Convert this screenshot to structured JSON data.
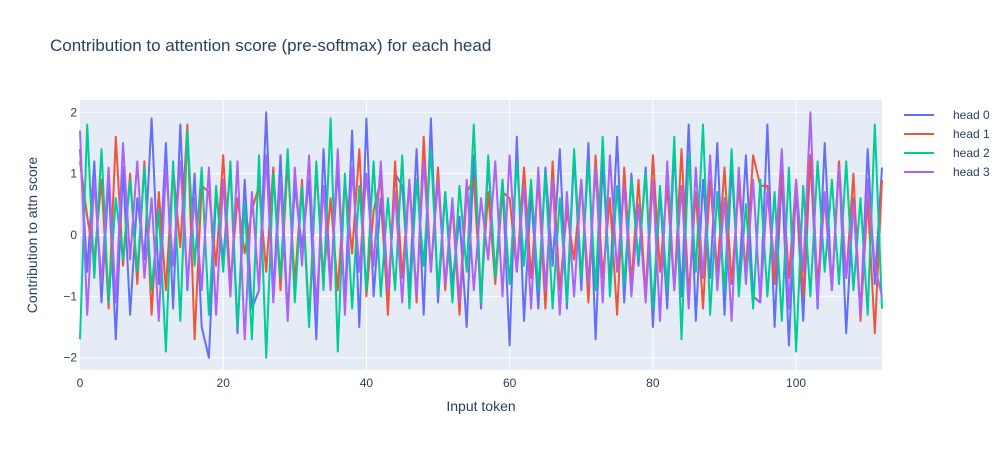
{
  "chart_data": {
    "type": "line",
    "title": "Contribution to attention score (pre-softmax) for each head",
    "xlabel": "Input token",
    "ylabel": "Contribution to attn score",
    "xlim": [
      0,
      112
    ],
    "ylim": [
      -2.2,
      2.2
    ],
    "x_ticks": [
      0,
      20,
      40,
      60,
      80,
      100
    ],
    "y_ticks": [
      -2,
      -1,
      0,
      1,
      2
    ],
    "x_tick_labels": [
      "0",
      "20",
      "40",
      "60",
      "80",
      "100"
    ],
    "y_tick_labels": [
      "−2",
      "−1",
      "0",
      "1",
      "2"
    ],
    "grid": true,
    "legend_position": "top-right",
    "x": [
      0,
      1,
      2,
      3,
      4,
      5,
      6,
      7,
      8,
      9,
      10,
      11,
      12,
      13,
      14,
      15,
      16,
      17,
      18,
      19,
      20,
      21,
      22,
      23,
      24,
      25,
      26,
      27,
      28,
      29,
      30,
      31,
      32,
      33,
      34,
      35,
      36,
      37,
      38,
      39,
      40,
      41,
      42,
      43,
      44,
      45,
      46,
      47,
      48,
      49,
      50,
      51,
      52,
      53,
      54,
      55,
      56,
      57,
      58,
      59,
      60,
      61,
      62,
      63,
      64,
      65,
      66,
      67,
      68,
      69,
      70,
      71,
      72,
      73,
      74,
      75,
      76,
      77,
      78,
      79,
      80,
      81,
      82,
      83,
      84,
      85,
      86,
      87,
      88,
      89,
      90,
      91,
      92,
      93,
      94,
      95,
      96,
      97,
      98,
      99,
      100,
      101,
      102,
      103,
      104,
      105,
      106,
      107,
      108,
      109,
      110,
      111,
      112
    ],
    "series": [
      {
        "name": "head 0",
        "color": "#636efa",
        "values": [
          1.4,
          -0.6,
          1.2,
          -1.1,
          0.9,
          -1.7,
          1.1,
          -1.3,
          0.6,
          -0.4,
          1.9,
          -0.8,
          1.5,
          -1.2,
          1.8,
          -0.9,
          1.0,
          -1.5,
          -2.0,
          0.7,
          -0.4,
          1.1,
          -1.6,
          0.9,
          -1.2,
          -0.9,
          2.0,
          -1.0,
          1.3,
          -1.3,
          0.8,
          -0.2,
          0.9,
          -1.7,
          1.4,
          -0.8,
          1.1,
          -1.1,
          1.7,
          -1.5,
          1.9,
          -1.0,
          0.6,
          -1.2,
          1.0,
          0.8,
          -0.9,
          1.4,
          -1.3,
          1.9,
          -1.1,
          0.7,
          -0.8,
          0.3,
          -1.5,
          1.3,
          -1.2,
          1.2,
          -0.7,
          0.9,
          -1.8,
          1.6,
          -1.4,
          0.7,
          -1.2,
          1.1,
          -0.5,
          1.4,
          -1.2,
          1.3,
          -0.9,
          1.5,
          -1.7,
          1.2,
          -0.8,
          1.6,
          -1.1,
          1.0,
          -0.5,
          1.1,
          -1.5,
          0.7,
          -1.2,
          1.4,
          -1.0,
          1.8,
          -1.4,
          0.9,
          -0.7,
          1.5,
          -1.3,
          1.1,
          -0.8,
          1.3,
          -1.0,
          -1.1,
          1.8,
          -1.5,
          1.0,
          -1.8,
          0.8,
          -1.4,
          1.3,
          -1.2,
          1.5,
          -0.9,
          1.2,
          -1.6,
          0.6,
          -1.3,
          1.4,
          -0.8,
          1.1
        ]
      },
      {
        "name": "head 1",
        "color": "#ef553b",
        "values": [
          1.2,
          0.3,
          -0.4,
          0.9,
          -1.2,
          1.6,
          -0.5,
          1.0,
          -0.8,
          1.2,
          -1.3,
          0.7,
          -0.9,
          1.1,
          -0.2,
          1.8,
          -1.7,
          0.8,
          0.7,
          -0.5,
          1.3,
          -0.8,
          0.6,
          -0.3,
          0.4,
          0.8,
          -0.6,
          1.1,
          -0.9,
          1.2,
          -0.8,
          0.9,
          -1.4,
          1.1,
          -0.7,
          0.6,
          -0.9,
          0.9,
          -0.3,
          1.4,
          -1.0,
          0.4,
          0.9,
          -1.3,
          1.2,
          -0.7,
          0.9,
          -1.1,
          1.6,
          -0.6,
          1.1,
          -0.9,
          0.5,
          -1.3,
          0.7,
          0.9,
          -1.0,
          0.7,
          -0.8,
          0.7,
          0.6,
          -0.6,
          1.1,
          -0.7,
          0.9,
          -1.2,
          1.2,
          -0.9,
          0.4,
          -0.4,
          0.9,
          -1.1,
          1.3,
          -0.7,
          0.6,
          -1.3,
          1.1,
          -0.8,
          0.9,
          -1.0,
          1.3,
          -0.6,
          0.8,
          -0.9,
          1.4,
          -1.0,
          0.7,
          -1.2,
          0.9,
          -0.6,
          1.1,
          -0.8,
          0.8,
          -0.6,
          1.3,
          0.8,
          0.8,
          -0.8,
          1.1,
          -0.7,
          0.9,
          -1.0,
          1.3,
          -0.8,
          0.6,
          -0.9,
          1.2,
          -0.7,
          1.0,
          -1.4,
          0.6,
          -1.6,
          0.9
        ]
      },
      {
        "name": "head 2",
        "color": "#00cc96",
        "values": [
          -1.7,
          1.8,
          -0.7,
          1.4,
          -1.1,
          0.6,
          -0.4,
          0.9,
          -0.6,
          1.1,
          -0.9,
          0.4,
          -1.9,
          1.2,
          -1.4,
          1.7,
          -0.5,
          1.1,
          -1.3,
          0.8,
          -0.6,
          1.2,
          -1.5,
          0.5,
          -1.7,
          1.3,
          -2.0,
          1.0,
          -0.7,
          1.4,
          -1.1,
          0.8,
          -1.5,
          1.2,
          -0.9,
          1.9,
          -1.9,
          1.0,
          -1.2,
          0.8,
          -0.9,
          1.2,
          -1.0,
          0.6,
          -0.9,
          1.3,
          -1.2,
          0.9,
          -0.5,
          1.4,
          -0.9,
          0.7,
          -1.1,
          0.8,
          -0.6,
          1.8,
          -1.1,
          1.3,
          -0.7,
          0.9,
          -0.8,
          1.2,
          -0.5,
          0.9,
          -0.9,
          1.0,
          -1.2,
          0.6,
          -1.1,
          1.4,
          -0.7,
          1.2,
          -0.9,
          1.6,
          -1.0,
          0.8,
          -0.8,
          0.9,
          -0.4,
          1.0,
          -1.2,
          0.8,
          -0.9,
          1.6,
          -1.7,
          1.3,
          -0.6,
          1.8,
          -1.3,
          0.7,
          -0.9,
          1.4,
          -1.0,
          0.5,
          -1.2,
          0.9,
          -1.0,
          0.7,
          -1.4,
          1.1,
          -1.9,
          0.8,
          -1.0,
          1.2,
          -0.6,
          0.9,
          -0.8,
          1.2,
          -0.9,
          0.6,
          -1.3,
          1.8,
          -1.2
        ]
      },
      {
        "name": "head 3",
        "color": "#ab63fa",
        "values": [
          1.7,
          -1.3,
          0.9,
          -0.8,
          1.1,
          -1.1,
          1.5,
          -0.4,
          1.2,
          -0.7,
          0.6,
          -1.4,
          1.1,
          -0.5,
          1.2,
          -0.8,
          0.6,
          -0.9,
          1.1,
          -1.3,
          0.9,
          -1.0,
          1.2,
          -1.7,
          0.7,
          -0.9,
          1.3,
          -1.1,
          0.9,
          -1.4,
          1.1,
          -0.5,
          1.3,
          -1.2,
          0.8,
          -0.9,
          1.4,
          -1.3,
          1.1,
          -0.6,
          1.0,
          -0.5,
          1.2,
          -0.9,
          0.7,
          -1.1,
          0.9,
          -1.0,
          1.2,
          -0.6,
          0.9,
          -0.8,
          0.6,
          -1.1,
          0.9,
          -0.9,
          0.6,
          -0.4,
          1.2,
          -1.0,
          1.3,
          -0.6,
          0.8,
          -1.2,
          1.1,
          -0.9,
          0.9,
          -1.3,
          0.7,
          -1.0,
          0.9,
          -0.8,
          1.1,
          -1.1,
          1.3,
          -0.6,
          0.8,
          -1.0,
          0.5,
          -1.1,
          0.9,
          -1.4,
          1.2,
          -0.9,
          0.8,
          -1.2,
          1.1,
          -0.7,
          1.3,
          -0.9,
          0.6,
          -1.4,
          1.1,
          -0.8,
          0.9,
          -1.1,
          0.7,
          -0.5,
          1.4,
          -1.2,
          0.9,
          -0.6,
          2.0,
          -1.1,
          0.7,
          -0.9,
          1.1,
          -0.7,
          0.5,
          -1.3,
          0.9,
          -0.5,
          -1.0
        ]
      }
    ]
  }
}
